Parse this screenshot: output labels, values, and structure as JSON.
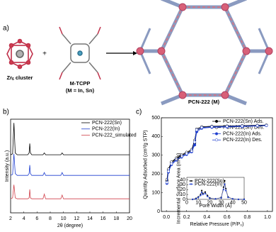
{
  "scheme": {
    "label": "a)",
    "cluster": {
      "main": "Zr",
      "sub": "6",
      "rest": " cluster"
    },
    "plus": "+",
    "linker": "M-TCPP",
    "linker_note": "(M = In, Sn)",
    "product": "PCN-222 (M)"
  },
  "chart_data": [
    {
      "type": "line",
      "panel_label": "b)",
      "xlabel": "2θ (degree)",
      "ylabel": "Intensity (a.u.)",
      "xlim": [
        2,
        20
      ],
      "xticks": [
        2,
        4,
        6,
        8,
        10,
        12,
        14,
        16,
        18,
        20
      ],
      "ylim": [
        0,
        100
      ],
      "legend": "upper right",
      "x": [
        2,
        2.3,
        2.5,
        2.7,
        3,
        4.6,
        4.8,
        4.9,
        5.0,
        5.2,
        6.9,
        7.1,
        7.3,
        9.6,
        9.8,
        10.0,
        20
      ],
      "series": [
        {
          "name": "PCN-222(Sn)",
          "color": "#000000",
          "values": [
            62,
            63,
            96,
            64,
            62,
            62,
            64,
            74,
            64,
            62,
            62,
            64,
            62,
            62,
            64,
            62,
            62
          ]
        },
        {
          "name": "PCN-222(In)",
          "color": "#1f3fd0",
          "values": [
            40,
            41,
            63,
            42,
            40,
            40,
            42,
            51,
            42,
            40,
            40,
            43,
            40,
            40,
            43,
            40,
            40
          ]
        },
        {
          "name": "PCN-222_simulated",
          "color": "#d0404a",
          "values": [
            15,
            16,
            30,
            16,
            15,
            15,
            16,
            25,
            16,
            15,
            15,
            20,
            15,
            15,
            19,
            15,
            15
          ]
        }
      ]
    },
    {
      "type": "line",
      "panel_label": "c)",
      "xlabel": "Relative Pressure (P/P₀)",
      "ylabel": "Quantity Adsorbed (cm³/g STP)",
      "xlim": [
        -0.05,
        1.05
      ],
      "xticks": [
        {
          "value": 0,
          "label": "0.0"
        },
        0.2,
        0.4,
        0.6,
        0.8,
        {
          "value": 1,
          "label": "1.0"
        }
      ],
      "ylim": [
        0,
        500
      ],
      "yticks": [
        0,
        100,
        200,
        300,
        400,
        500
      ],
      "legend": "upper right",
      "markers": true,
      "x": [
        0.005,
        0.02,
        0.05,
        0.1,
        0.15,
        0.2,
        0.25,
        0.28,
        0.3,
        0.35,
        0.45,
        0.6,
        0.75,
        0.9,
        0.99
      ],
      "series": [
        {
          "name": "PCN-222(Sn) Ads.",
          "color": "#000000",
          "filled": true,
          "values": [
            165,
            222,
            260,
            282,
            298,
            312,
            325,
            365,
            432,
            448,
            452,
            454,
            456,
            458,
            460
          ]
        },
        {
          "name": "PCN-222(Sn) Des.",
          "color": "#000000",
          "filled": false,
          "values": [
            170,
            226,
            264,
            286,
            302,
            316,
            330,
            380,
            440,
            452,
            455,
            456,
            458,
            460,
            461
          ]
        },
        {
          "name": "PCN-222(In) Ads.",
          "color": "#1f3fd0",
          "filled": true,
          "values": [
            150,
            210,
            250,
            274,
            290,
            304,
            318,
            355,
            425,
            444,
            449,
            451,
            453,
            456,
            458
          ]
        },
        {
          "name": "PCN-222(In) Des.",
          "color": "#1f3fd0",
          "filled": false,
          "values": [
            155,
            214,
            254,
            278,
            294,
            308,
            322,
            370,
            435,
            448,
            452,
            454,
            456,
            458,
            459
          ]
        }
      ]
    },
    {
      "type": "line",
      "inset": true,
      "xlabel": "Pore Width (Å)",
      "ylabel": "Incremental Surface Area (m²/g)",
      "xlim": [
        0,
        50
      ],
      "xticks": [
        0,
        10,
        20,
        30,
        40,
        50
      ],
      "ylim": [
        0,
        45
      ],
      "yticks": [
        0,
        10,
        20,
        30,
        40
      ],
      "legend": "upper left",
      "markers": true,
      "x": [
        5,
        8,
        10,
        12,
        13,
        14,
        16,
        18,
        20,
        25,
        30,
        32,
        33,
        34,
        36,
        40,
        45,
        50
      ],
      "series": [
        {
          "name": "PCN-222(Sn)",
          "color": "#000000",
          "filled": true,
          "values": [
            0,
            2,
            5,
            10,
            18,
            12,
            15,
            8,
            3,
            1,
            4,
            25,
            38,
            22,
            5,
            1,
            0,
            0
          ]
        },
        {
          "name": "PCN-222(In)",
          "color": "#1f3fd0",
          "filled": true,
          "values": [
            0,
            1,
            4,
            8,
            14,
            10,
            12,
            6,
            2,
            1,
            3,
            20,
            31,
            18,
            4,
            1,
            0,
            0
          ]
        }
      ]
    }
  ]
}
